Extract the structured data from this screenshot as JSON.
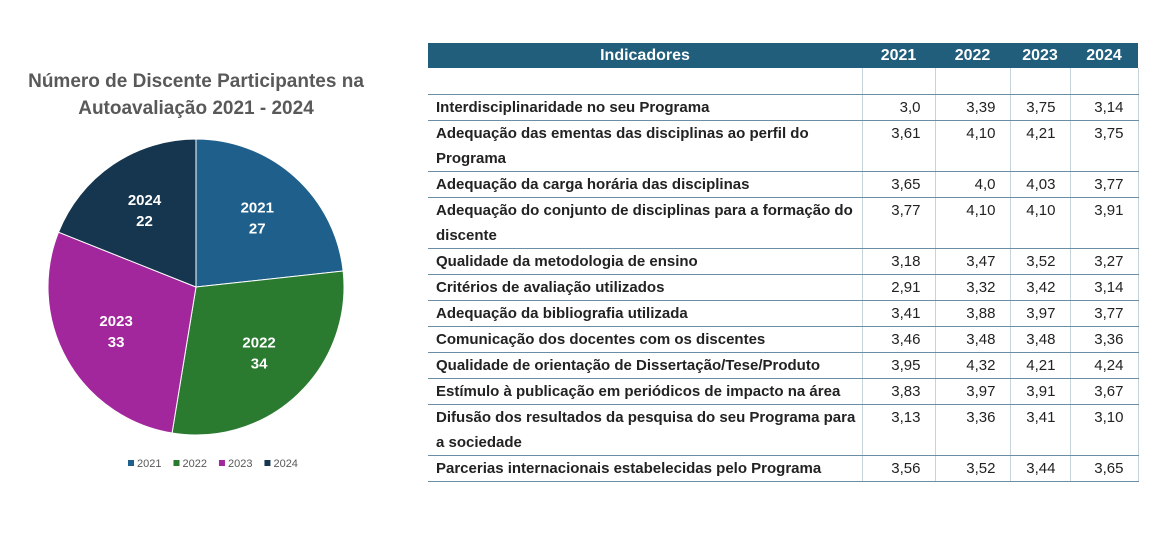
{
  "chart_data": {
    "type": "pie",
    "title": "Número de Discente Participantes na Autoavaliação 2021 - 2024",
    "categories": [
      "2021",
      "2022",
      "2023",
      "2024"
    ],
    "values": [
      27,
      34,
      33,
      22
    ],
    "colors": [
      "#1f5f8b",
      "#2a7a30",
      "#a3279c",
      "#16364f"
    ],
    "legend": "bottom"
  },
  "table": {
    "header": [
      "Indicadores",
      "2021",
      "2022",
      "2023",
      "2024"
    ],
    "rows": [
      [
        "Interdisciplinaridade no seu Programa",
        "3,0",
        "3,39",
        "3,75",
        "3,14"
      ],
      [
        "Adequação das ementas das disciplinas ao perfil do Programa",
        "3,61",
        "4,10",
        "4,21",
        "3,75"
      ],
      [
        "Adequação da carga horária das disciplinas",
        "3,65",
        "4,0",
        "4,03",
        "3,77"
      ],
      [
        "Adequação do conjunto de disciplinas para a formação do discente",
        "3,77",
        "4,10",
        "4,10",
        "3,91"
      ],
      [
        "Qualidade da metodologia de ensino",
        "3,18",
        "3,47",
        "3,52",
        "3,27"
      ],
      [
        "Critérios de avaliação utilizados",
        "2,91",
        "3,32",
        "3,42",
        "3,14"
      ],
      [
        "Adequação da bibliografia utilizada",
        "3,41",
        "3,88",
        "3,97",
        "3,77"
      ],
      [
        "Comunicação dos docentes com os discentes",
        "3,46",
        "3,48",
        "3,48",
        "3,36"
      ],
      [
        "Qualidade de orientação de Dissertação/Tese/Produto",
        "3,95",
        "4,32",
        "4,21",
        "4,24"
      ],
      [
        "Estímulo à publicação em periódicos de impacto na área",
        "3,83",
        "3,97",
        "3,91",
        "3,67"
      ],
      [
        "Difusão dos resultados da pesquisa do seu Programa para a sociedade",
        "3,13",
        "3,36",
        "3,41",
        "3,10"
      ],
      [
        "Parcerias internacionais estabelecidas pelo Programa",
        "3,56",
        "3,52",
        "3,44",
        "3,65"
      ]
    ]
  }
}
